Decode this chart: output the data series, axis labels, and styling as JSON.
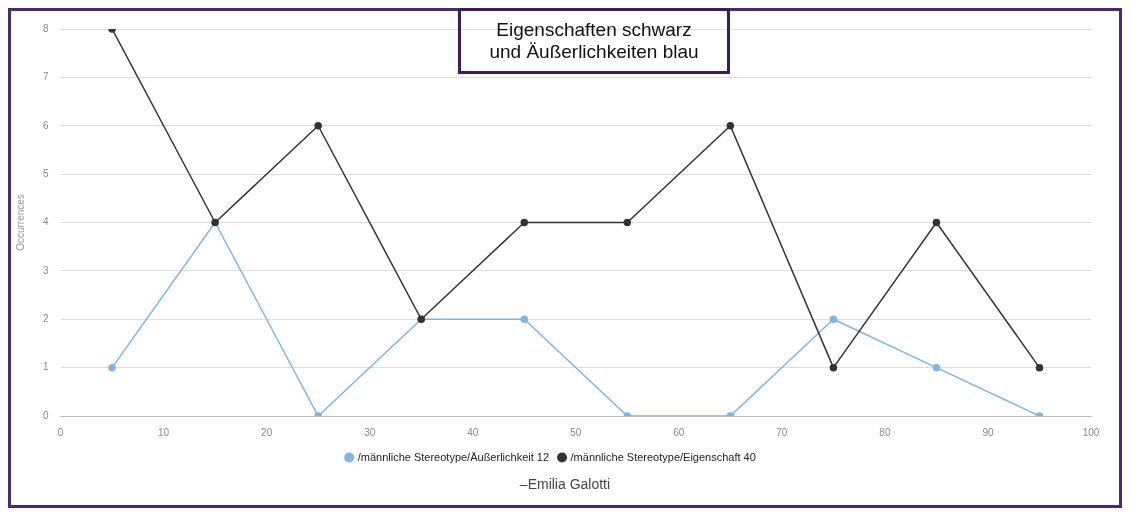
{
  "chart_data": {
    "type": "line",
    "title": "Eigenschaften schwarz und Äußerlichkeiten blau",
    "ylabel": "Occurrences",
    "x": [
      5,
      15,
      25,
      35,
      45,
      55,
      65,
      75,
      85,
      95
    ],
    "series": [
      {
        "name": "/männliche Stereotype/Äußerlichkeit 12",
        "color": "#7fb5e3",
        "values": [
          1,
          4,
          0,
          2,
          2,
          0,
          0,
          2,
          1,
          0
        ]
      },
      {
        "name": "/männliche Stereotype/Eigenschaft 40",
        "color": "#333333",
        "values": [
          8,
          4,
          6,
          2,
          4,
          4,
          6,
          1,
          4,
          1
        ]
      }
    ],
    "xlim": [
      0,
      100
    ],
    "xticks": [
      0,
      10,
      20,
      30,
      40,
      50,
      60,
      70,
      80,
      90,
      100
    ],
    "ylim": [
      0,
      8
    ],
    "yticks": [
      0,
      1,
      2,
      3,
      4,
      5,
      6,
      7,
      8
    ],
    "grid": "y",
    "legend": "bottom",
    "marker": "circle",
    "line_style": "solid",
    "annotations": [
      "–Emilia Galotti"
    ]
  }
}
